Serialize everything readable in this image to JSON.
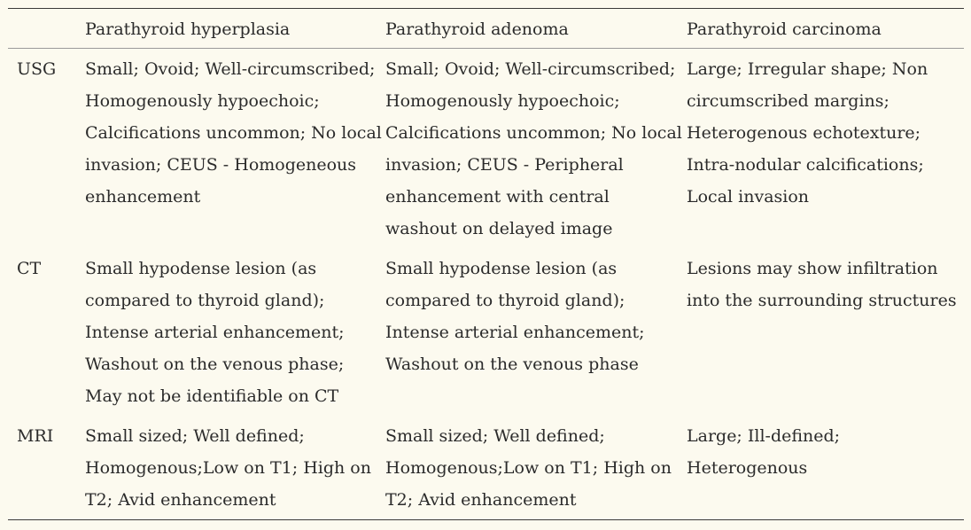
{
  "table": {
    "headers": [
      "",
      "Parathyroid hyperplasia",
      "Parathyroid adenoma",
      "Parathyroid carcinoma"
    ],
    "rows": [
      {
        "label": "USG",
        "cells": [
          "Small; Ovoid; Well-circumscribed; Homogenously hypoechoic; Calcifications uncommon; No local invasion; CEUS - Homogeneous enhancement",
          "Small; Ovoid; Well-circumscribed; Homogenously hypoechoic; Calcifications uncommon; No local invasion; CEUS - Peripheral enhancement with central washout on delayed image",
          "Large; Irregular shape; Non circumscribed margins; Heterogenous echotexture; Intra-nodular calcifications; Local invasion"
        ]
      },
      {
        "label": "CT",
        "cells": [
          "Small hypodense lesion (as compared to thyroid gland); Intense arterial enhancement; Washout on the venous phase; May not be identifiable on CT",
          "Small hypodense lesion (as compared to thyroid gland); Intense arterial enhancement; Washout on the venous phase",
          "Lesions may show infiltration into the surrounding structures"
        ]
      },
      {
        "label": "MRI",
        "cells": [
          "Small sized; Well defined; Homogenous;Low on T1; High on T2; Avid enhancement",
          "Small sized; Well defined; Homogenous;Low on T1; High on T2; Avid enhancement",
          "Large; Ill-defined; Heterogenous"
        ]
      }
    ]
  }
}
